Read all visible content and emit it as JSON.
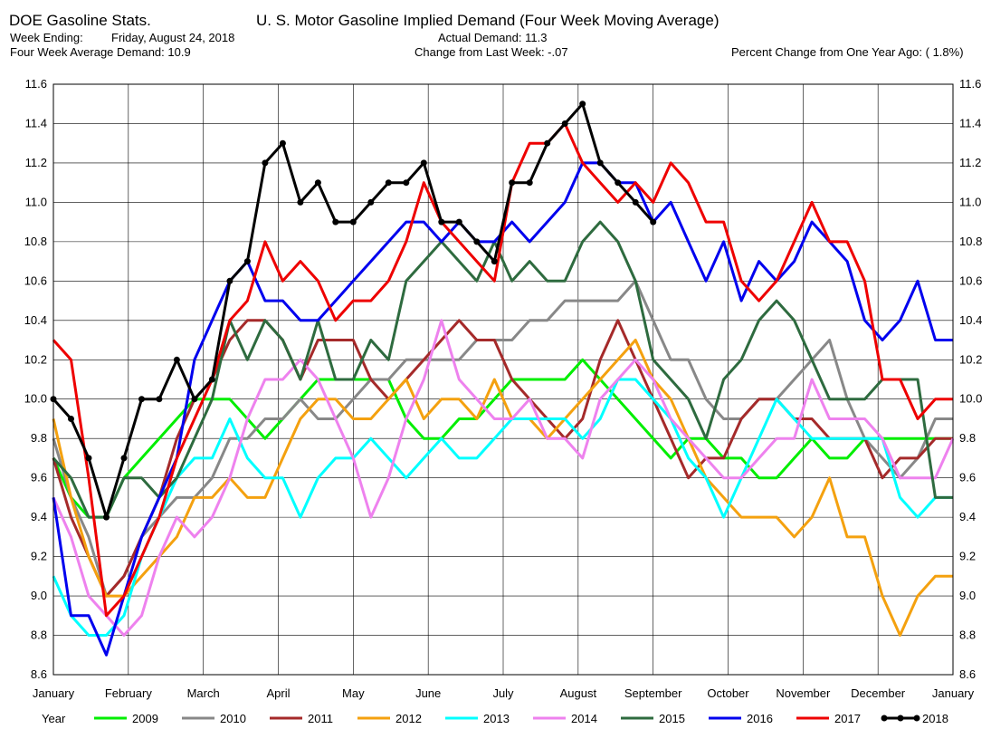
{
  "header": {
    "source": "DOE Gasoline Stats.",
    "title": "U. S. Motor Gasoline Implied Demand (Four Week Moving Average)",
    "week_ending_label": "Week Ending:",
    "week_ending_value": "Friday, August 24, 2018",
    "actual_demand": "Actual Demand: 11.3",
    "four_week_avg": "Four Week Average Demand: 10.9",
    "change_last_week": "Change from Last Week: -.07",
    "pct_change_year": "Percent Change from One Year Ago: ( 1.8%)"
  },
  "chart_data": {
    "type": "line",
    "ylim": [
      8.6,
      11.6
    ],
    "ytick_labels": [
      "8.6",
      "8.8",
      "9.0",
      "9.2",
      "9.4",
      "9.6",
      "9.8",
      "10.0",
      "10.2",
      "10.4",
      "10.6",
      "10.8",
      "11.0",
      "11.2",
      "11.4",
      "11.6"
    ],
    "xlim": [
      0,
      12
    ],
    "month_labels": [
      "January",
      "February",
      "March",
      "April",
      "May",
      "June",
      "July",
      "August",
      "September",
      "October",
      "November",
      "December",
      "January"
    ],
    "legend_title": "Year",
    "grid": true,
    "series": [
      {
        "name": "2009",
        "color": "#00ee00",
        "markers": false,
        "values": [
          9.7,
          9.5,
          9.4,
          9.4,
          9.6,
          9.7,
          9.8,
          9.9,
          10.0,
          10.0,
          10.0,
          9.9,
          9.8,
          9.9,
          10.0,
          10.1,
          10.1,
          10.1,
          10.1,
          10.1,
          9.9,
          9.8,
          9.8,
          9.9,
          9.9,
          10.0,
          10.1,
          10.1,
          10.1,
          10.1,
          10.2,
          10.1,
          10.0,
          9.9,
          9.8,
          9.7,
          9.8,
          9.8,
          9.7,
          9.7,
          9.6,
          9.6,
          9.7,
          9.8,
          9.7,
          9.7,
          9.8,
          9.8,
          9.8,
          9.8,
          9.8,
          9.8
        ]
      },
      {
        "name": "2010",
        "color": "#888888",
        "markers": false,
        "values": [
          9.8,
          9.5,
          9.3,
          9.0,
          9.1,
          9.3,
          9.4,
          9.5,
          9.5,
          9.6,
          9.8,
          9.8,
          9.9,
          9.9,
          10.0,
          9.9,
          9.9,
          10.0,
          10.1,
          10.1,
          10.2,
          10.2,
          10.2,
          10.2,
          10.3,
          10.3,
          10.3,
          10.4,
          10.4,
          10.5,
          10.5,
          10.5,
          10.5,
          10.6,
          10.4,
          10.2,
          10.2,
          10.0,
          9.9,
          9.9,
          10.0,
          10.0,
          10.1,
          10.2,
          10.3,
          10.0,
          9.8,
          9.7,
          9.6,
          9.7,
          9.9,
          9.9
        ]
      },
      {
        "name": "2011",
        "color": "#a52a2a",
        "markers": false,
        "values": [
          9.7,
          9.4,
          9.2,
          9.0,
          9.1,
          9.3,
          9.5,
          9.8,
          10.0,
          10.1,
          10.3,
          10.4,
          10.4,
          10.3,
          10.1,
          10.3,
          10.3,
          10.3,
          10.1,
          10.0,
          10.1,
          10.2,
          10.3,
          10.4,
          10.3,
          10.3,
          10.1,
          10.0,
          9.9,
          9.8,
          9.9,
          10.2,
          10.4,
          10.2,
          10.0,
          9.8,
          9.6,
          9.7,
          9.7,
          9.9,
          10.0,
          10.0,
          9.9,
          9.9,
          9.8,
          9.8,
          9.8,
          9.6,
          9.7,
          9.7,
          9.8,
          9.8
        ]
      },
      {
        "name": "2012",
        "color": "#f4a10f",
        "markers": false,
        "values": [
          9.9,
          9.5,
          9.2,
          9.0,
          9.0,
          9.1,
          9.2,
          9.3,
          9.5,
          9.5,
          9.6,
          9.5,
          9.5,
          9.7,
          9.9,
          10.0,
          10.0,
          9.9,
          9.9,
          10.0,
          10.1,
          9.9,
          10.0,
          10.0,
          9.9,
          10.1,
          9.9,
          9.9,
          9.8,
          9.9,
          10.0,
          10.1,
          10.2,
          10.3,
          10.1,
          10.0,
          9.8,
          9.6,
          9.5,
          9.4,
          9.4,
          9.4,
          9.3,
          9.4,
          9.6,
          9.3,
          9.3,
          9.0,
          8.8,
          9.0,
          9.1,
          9.1
        ]
      },
      {
        "name": "2013",
        "color": "#00ffff",
        "markers": false,
        "values": [
          9.1,
          8.9,
          8.8,
          8.8,
          8.9,
          9.2,
          9.4,
          9.6,
          9.7,
          9.7,
          9.9,
          9.7,
          9.6,
          9.6,
          9.4,
          9.6,
          9.7,
          9.7,
          9.8,
          9.7,
          9.6,
          9.7,
          9.8,
          9.7,
          9.7,
          9.8,
          9.9,
          9.9,
          9.9,
          9.9,
          9.8,
          9.9,
          10.1,
          10.1,
          10.0,
          9.9,
          9.7,
          9.6,
          9.4,
          9.6,
          9.8,
          10.0,
          9.9,
          9.8,
          9.8,
          9.8,
          9.8,
          9.8,
          9.5,
          9.4,
          9.5,
          9.5
        ]
      },
      {
        "name": "2014",
        "color": "#ee82ee",
        "markers": false,
        "values": [
          9.5,
          9.3,
          9.0,
          8.9,
          8.8,
          8.9,
          9.2,
          9.4,
          9.3,
          9.4,
          9.6,
          9.9,
          10.1,
          10.1,
          10.2,
          10.1,
          9.9,
          9.7,
          9.4,
          9.6,
          9.9,
          10.1,
          10.4,
          10.1,
          10.0,
          9.9,
          9.9,
          10.0,
          9.8,
          9.8,
          9.7,
          10.0,
          10.1,
          10.2,
          10.1,
          9.9,
          9.8,
          9.7,
          9.6,
          9.6,
          9.7,
          9.8,
          9.8,
          10.1,
          9.9,
          9.9,
          9.9,
          9.8,
          9.6,
          9.6,
          9.6,
          9.8
        ]
      },
      {
        "name": "2015",
        "color": "#2e6b3f",
        "markers": false,
        "values": [
          9.7,
          9.6,
          9.4,
          9.4,
          9.6,
          9.6,
          9.5,
          9.6,
          9.8,
          10.0,
          10.4,
          10.2,
          10.4,
          10.3,
          10.1,
          10.4,
          10.1,
          10.1,
          10.3,
          10.2,
          10.6,
          10.7,
          10.8,
          10.7,
          10.6,
          10.8,
          10.6,
          10.7,
          10.6,
          10.6,
          10.8,
          10.9,
          10.8,
          10.6,
          10.2,
          10.1,
          10.0,
          9.8,
          10.1,
          10.2,
          10.4,
          10.5,
          10.4,
          10.2,
          10.0,
          10.0,
          10.0,
          10.1,
          10.1,
          10.1,
          9.5,
          9.5
        ]
      },
      {
        "name": "2016",
        "color": "#0000ee",
        "markers": false,
        "values": [
          9.5,
          8.9,
          8.9,
          8.7,
          9.0,
          9.3,
          9.5,
          9.7,
          10.2,
          10.4,
          10.6,
          10.7,
          10.5,
          10.5,
          10.4,
          10.4,
          10.5,
          10.6,
          10.7,
          10.8,
          10.9,
          10.9,
          10.8,
          10.9,
          10.8,
          10.8,
          10.9,
          10.8,
          10.9,
          11.0,
          11.2,
          11.2,
          11.1,
          11.1,
          10.9,
          11.0,
          10.8,
          10.6,
          10.8,
          10.5,
          10.7,
          10.6,
          10.7,
          10.9,
          10.8,
          10.7,
          10.4,
          10.3,
          10.4,
          10.6,
          10.3,
          10.3
        ]
      },
      {
        "name": "2017",
        "color": "#ee0000",
        "markers": false,
        "values": [
          10.3,
          10.2,
          9.6,
          8.9,
          9.0,
          9.2,
          9.4,
          9.7,
          9.9,
          10.1,
          10.4,
          10.5,
          10.8,
          10.6,
          10.7,
          10.6,
          10.4,
          10.5,
          10.5,
          10.6,
          10.8,
          11.1,
          10.9,
          10.8,
          10.7,
          10.6,
          11.1,
          11.3,
          11.3,
          11.4,
          11.2,
          11.1,
          11.0,
          11.1,
          11.0,
          11.2,
          11.1,
          10.9,
          10.9,
          10.6,
          10.5,
          10.6,
          10.8,
          11.0,
          10.8,
          10.8,
          10.6,
          10.1,
          10.1,
          9.9,
          10.0,
          10.0
        ]
      },
      {
        "name": "2018",
        "color": "#000000",
        "markers": true,
        "values": [
          10.0,
          9.9,
          9.7,
          9.4,
          9.7,
          10.0,
          10.0,
          10.2,
          10.0,
          10.1,
          10.6,
          10.7,
          11.2,
          11.3,
          11.0,
          11.1,
          10.9,
          10.9,
          11.0,
          11.1,
          11.1,
          11.2,
          10.9,
          10.9,
          10.8,
          10.7,
          11.1,
          11.1,
          11.3,
          11.4,
          11.5,
          11.2,
          11.1,
          11.0,
          10.9
        ]
      }
    ]
  }
}
